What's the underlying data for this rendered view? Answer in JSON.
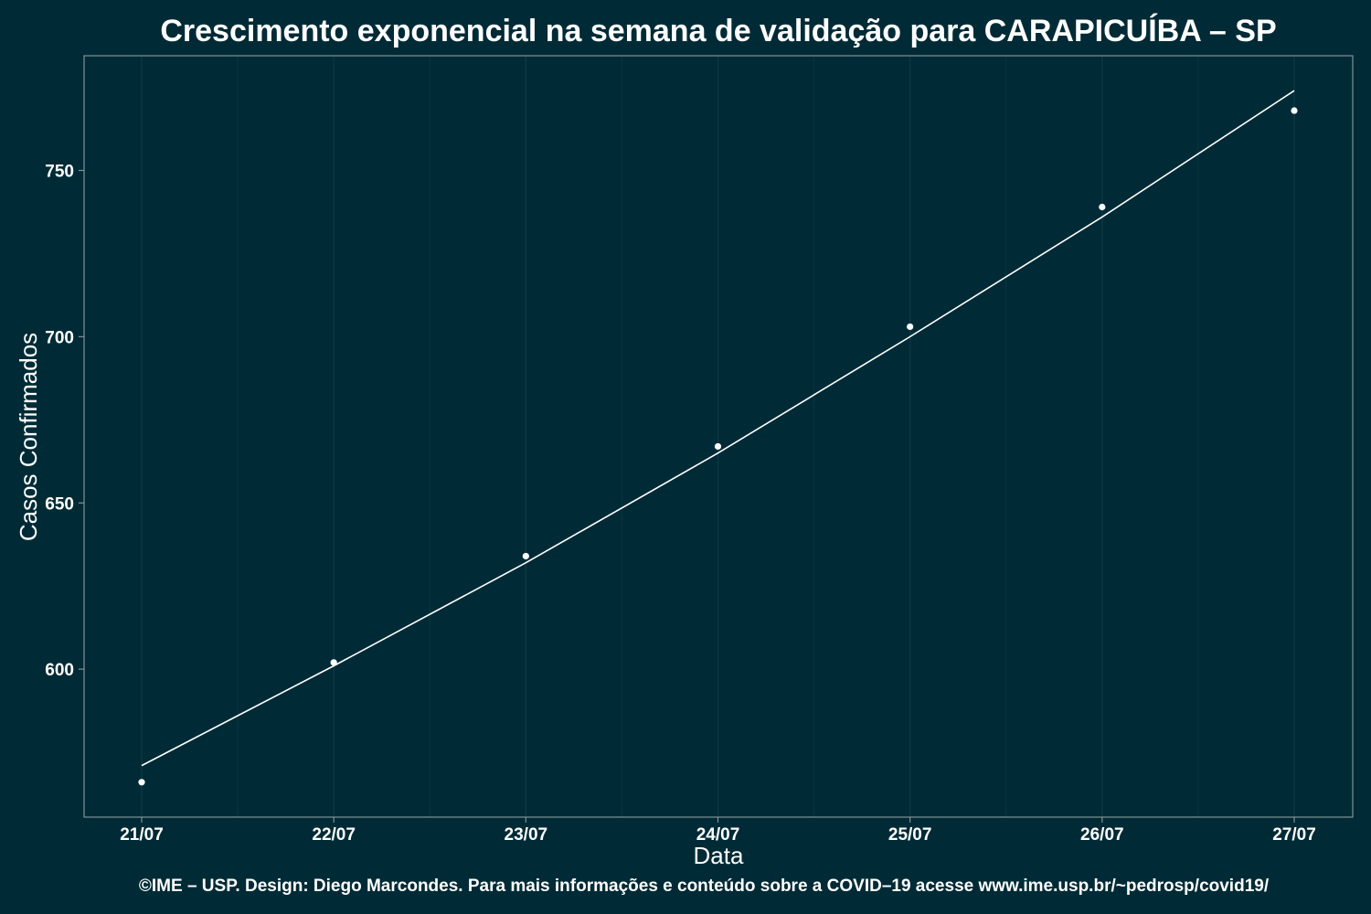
{
  "chart_data": {
    "type": "scatter",
    "title": "Crescimento exponencial na semana de validação para CARAPICUÍBA – SP",
    "xlabel": "Data",
    "ylabel": "Casos Confirmados",
    "caption": "©IME – USP. Design: Diego Marcondes. Para mais informações e conteúdo sobre a COVID–19 acesse www.ime.usp.br/~pedrosp/covid19/",
    "categories": [
      "21/07",
      "22/07",
      "23/07",
      "24/07",
      "25/07",
      "26/07",
      "27/07"
    ],
    "series": [
      {
        "type": "scatter",
        "values": [
          566,
          602,
          634,
          667,
          703,
          739,
          768
        ]
      },
      {
        "type": "line",
        "values": [
          571,
          601,
          632,
          665,
          700,
          736,
          774
        ]
      }
    ],
    "yticks": [
      600,
      650,
      700,
      750
    ],
    "ylim": [
      555.5,
      784.5
    ],
    "grid": true,
    "colors": {
      "background": "#002b36",
      "grid": "#0d3a44",
      "border": "#7f9297",
      "text": "#ffffff",
      "points": "#ffffff",
      "line": "#ffffff"
    }
  }
}
